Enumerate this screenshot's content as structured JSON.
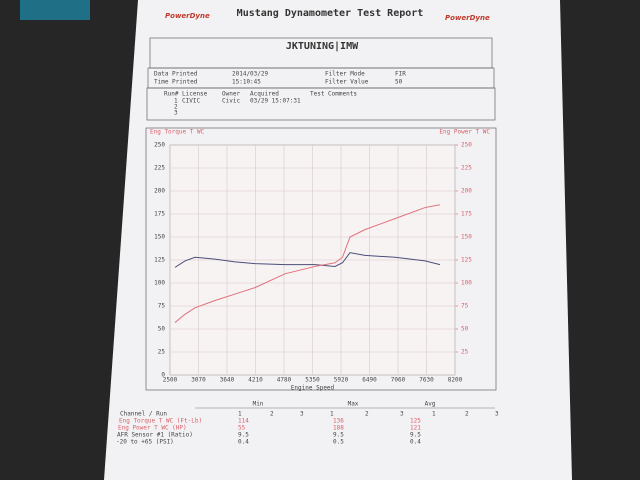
{
  "header": {
    "logo_left": "PowerDyne",
    "title": "Mustang Dynamometer Test Report",
    "logo_right": "PowerDyne",
    "shop": "JKTUNING|IMW"
  },
  "info": {
    "date_label": "Data Printed",
    "date": "2014/03/29",
    "time_label": "Time Printed",
    "time": "15:10:45",
    "filter_mode_label": "Filter Mode",
    "filter_mode": "FIR",
    "filter_value_label": "Filter Value",
    "filter_value": "50"
  },
  "runs": {
    "columns": [
      "Run#",
      "License",
      "Owner",
      "Acquired",
      "Test Comments"
    ],
    "rows": [
      [
        "1",
        "CIVIC",
        "Civic",
        "03/29 15:07:31"
      ],
      [
        "2"
      ],
      [
        "3"
      ]
    ]
  },
  "chart_data": {
    "type": "line",
    "x_label": "Engine Speed",
    "y_label": "Eng Torque T WC",
    "y2_label": "Eng Power T WC",
    "x": [
      2600,
      2800,
      3000,
      3400,
      3800,
      4200,
      4800,
      5400,
      5800,
      5950,
      6100,
      6400,
      7000,
      7600,
      7900
    ],
    "xlim": [
      2500,
      8200
    ],
    "xticks": [
      2500,
      3070,
      3640,
      4210,
      4780,
      5350,
      5920,
      6490,
      7060,
      7630,
      8200
    ],
    "ylim": [
      0,
      250
    ],
    "yticks": [
      0,
      25,
      50,
      75,
      100,
      125,
      150,
      175,
      200,
      225,
      250
    ],
    "y2lim": [
      0,
      250
    ],
    "y2ticks": [
      25,
      50,
      75,
      100,
      125,
      150,
      175,
      200,
      225,
      250
    ],
    "grid": true,
    "series": [
      {
        "name": "Eng Torque T WC",
        "color": "#4a4f7a",
        "values": [
          117,
          124,
          128,
          126,
          123,
          121,
          120,
          120,
          118,
          122,
          133,
          130,
          128,
          124,
          120
        ]
      },
      {
        "name": "Eng Power T WC",
        "color": "#e0707a",
        "axis": "y2",
        "values": [
          57,
          66,
          73,
          81,
          88,
          95,
          110,
          118,
          122,
          128,
          150,
          158,
          170,
          182,
          185
        ]
      }
    ]
  },
  "summary": {
    "groups": [
      "Min",
      "Max",
      "Avg"
    ],
    "rows": [
      {
        "label": "Channel / Run",
        "values": [
          "1",
          "2",
          "3",
          "1",
          "2",
          "3",
          "1",
          "2",
          "3"
        ]
      },
      {
        "label": "Eng Torque T WC (Ft-Lb)",
        "values": [
          "114",
          "136",
          "125"
        ]
      },
      {
        "label": "Eng Power T WC (HP)",
        "values": [
          "55",
          "188",
          "121"
        ]
      },
      {
        "label": "AFR Sensor #1 (Ratio)",
        "values": [
          "9.5",
          "9.5",
          "9.5"
        ]
      },
      {
        "label": "-20 to +65 (PSI)",
        "values": [
          "0.4",
          "0.5",
          "0.4"
        ]
      }
    ]
  }
}
